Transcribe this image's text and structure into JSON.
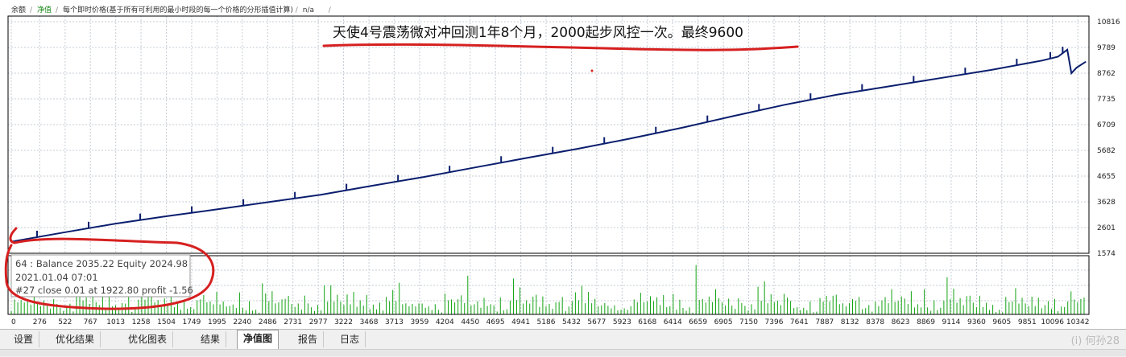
{
  "toolbar": {
    "items": [
      "余额",
      "净值",
      "每个即时价格(基于所有可利用的最小时段的每一个价格的分形插值计算)",
      "n/a"
    ]
  },
  "annotation": {
    "text": "天使4号震荡微对冲回测1年8个月，2000起步风控一次。最终9600",
    "color": "#d62020"
  },
  "info_box": {
    "line1": "64 : Balance 2035.22 Equity 2024.98",
    "line2": "2021.01.04 07:01",
    "line3": "#27 close 0.01 at 1922.80 profit -1.56"
  },
  "tabs": [
    "设置",
    "优化结果",
    "优化图表",
    "结果",
    "净值图",
    "报告",
    "日志"
  ],
  "active_tab": "净值图",
  "watermark": "(i) 何孙28",
  "colors": {
    "balance": "#0b1e6e",
    "volume": "#12a312",
    "grid": "#c6cdd4",
    "border": "#000000",
    "highlight": "#d62020"
  },
  "chart_data": {
    "type": "line",
    "title": "",
    "xlabel": "",
    "ylabel": "",
    "yticks": [
      10816,
      9789,
      8762,
      7735,
      6709,
      5682,
      4655,
      3628,
      2601,
      1574
    ],
    "ylim": [
      1574,
      10816
    ],
    "xticks": [
      0,
      276,
      522,
      767,
      1013,
      1258,
      1504,
      1749,
      1995,
      2240,
      2486,
      2731,
      2977,
      3222,
      3468,
      3713,
      3959,
      4204,
      4450,
      4695,
      4941,
      5186,
      5432,
      5677,
      5923,
      6168,
      6414,
      6659,
      6905,
      7150,
      7396,
      7641,
      7887,
      8132,
      8378,
      8623,
      8869,
      9114,
      9360,
      9605,
      9851,
      10096,
      10342
    ],
    "xlim": [
      0,
      10450
    ],
    "grid": true,
    "legend": "none",
    "series": [
      {
        "x": [
          0,
          500,
          1000,
          1500,
          2000,
          2500,
          3000,
          3500,
          4000,
          4500,
          5000,
          5500,
          6000,
          6500,
          7000,
          7500,
          8000,
          8500,
          9000,
          9500,
          10000,
          10150,
          10240,
          10280,
          10330,
          10420
        ],
        "y": [
          2035,
          2400,
          2750,
          3050,
          3330,
          3620,
          3910,
          4270,
          4620,
          5000,
          5380,
          5750,
          6150,
          6580,
          7050,
          7500,
          7900,
          8230,
          8560,
          8890,
          9270,
          9420,
          9700,
          8760,
          8980,
          9220
        ]
      }
    ],
    "volume": {
      "description_values": [
        0.1,
        0.18,
        0.06,
        0.22,
        0.12,
        0.32,
        0.08,
        0.15,
        0.26,
        0.1,
        0.45,
        0.18,
        0.07,
        0.62,
        0.14,
        0.22,
        0.09,
        0.3,
        0.55,
        0.16,
        0.74,
        0.11,
        0.2,
        0.4,
        0.08,
        0.66,
        0.25,
        0.13,
        0.35,
        0.05,
        0.85,
        0.19,
        0.28,
        0.12,
        0.48,
        0.22,
        0.95,
        0.1,
        0.31,
        0.17,
        0.58,
        0.24,
        0.09,
        0.7,
        0.2,
        0.36,
        0.13,
        0.52,
        0.27,
        0.88,
        0.15,
        0.43,
        0.08,
        0.61,
        0.21,
        0.33,
        0.12,
        0.77,
        0.19,
        0.46
      ]
    }
  }
}
